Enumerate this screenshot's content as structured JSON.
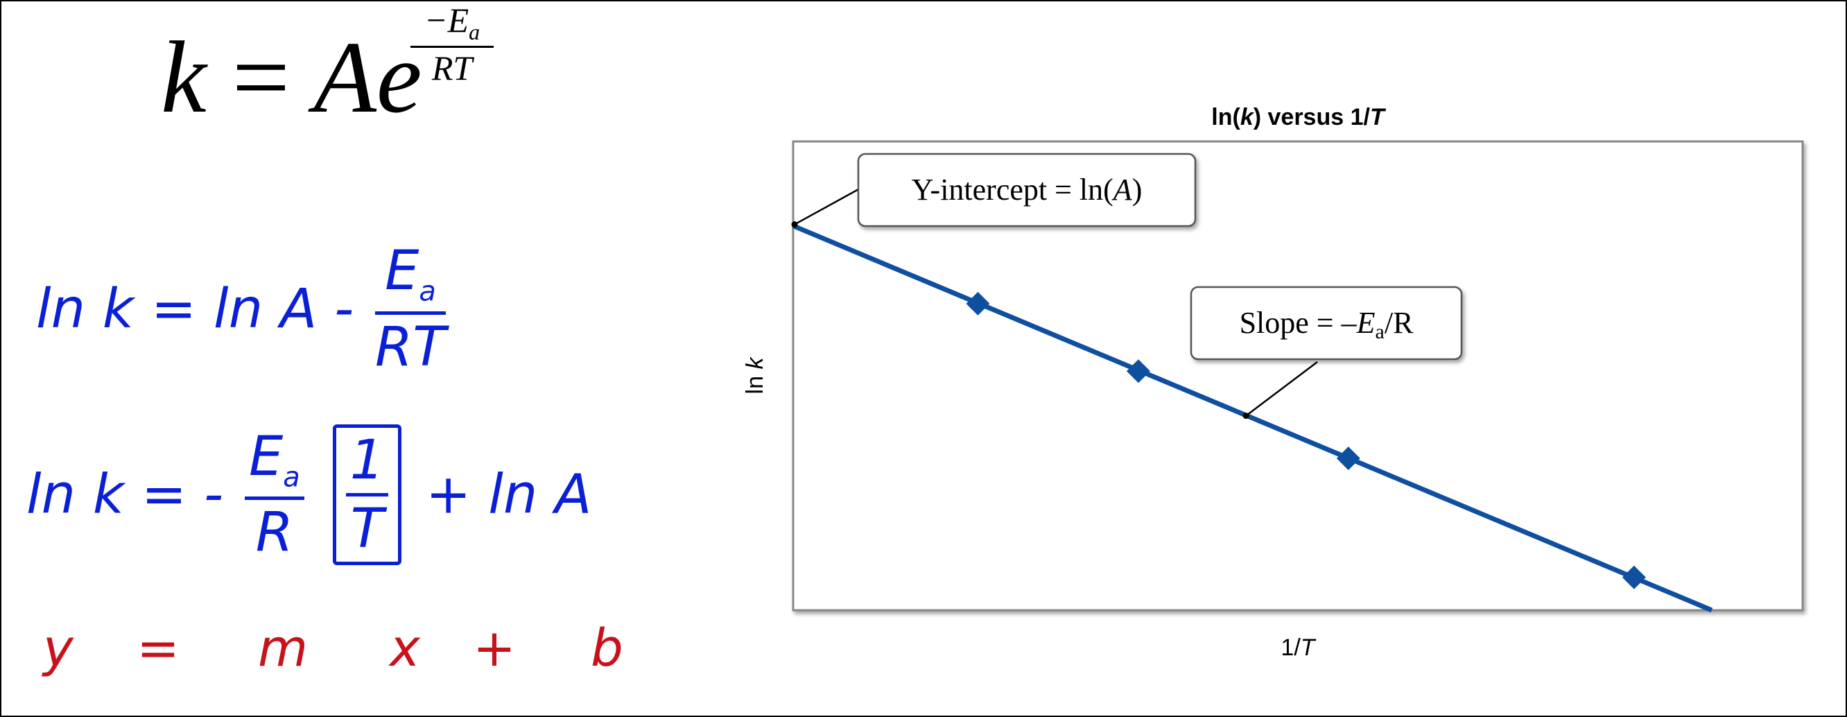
{
  "formulas": {
    "arrhenius": {
      "lhs": "k",
      "eq": "=",
      "rhs": "Ae",
      "exp_num": "−E",
      "exp_num_sub": "a",
      "exp_den": "RT"
    },
    "line1": {
      "lhs": "ln k",
      "eq": "=",
      "ln_a": "ln A",
      "minus": "-",
      "frac_num": "E",
      "frac_num_sub": "a",
      "frac_den": "RT"
    },
    "line2": {
      "lhs": "ln k",
      "eq": "=",
      "minus": "-",
      "frac_num": "E",
      "frac_num_sub": "a",
      "frac_den": "R",
      "inner_num": "1",
      "inner_den": "T",
      "plus": "+",
      "ln_a": "ln A"
    },
    "line3": {
      "y": "y",
      "eq": "=",
      "m": "m",
      "x": "x",
      "plus": "+",
      "b": "b"
    }
  },
  "colors": {
    "handwriting_blue": "#0a1fd8",
    "handwriting_red": "#c8121b",
    "series": "#0f4fa0",
    "frame": "#888888"
  },
  "chart_data": {
    "type": "line",
    "title_prefix": "ln(",
    "title_k": "k",
    "title_mid": ") versus 1/",
    "title_T": "T",
    "xlabel_prefix": "1/",
    "xlabel_var": "T",
    "ylabel_prefix": "ln ",
    "ylabel_var": "k",
    "xlim": [
      0,
      1
    ],
    "ylim": [
      0,
      1
    ],
    "line": {
      "x": [
        0,
        0.91
      ],
      "y": [
        0.82,
        0
      ]
    },
    "points": {
      "x": [
        0.183,
        0.342,
        0.55,
        0.833
      ],
      "y": [
        0.654,
        0.51,
        0.324,
        0.07
      ]
    },
    "grid": false,
    "annotations": [
      {
        "id": "intercept",
        "text_before": "Y-intercept = ln(",
        "text_var": "A",
        "text_after": ")"
      },
      {
        "id": "slope",
        "text_before": "Slope = –",
        "text_var": "E",
        "text_sub": "a",
        "text_after": "/R"
      }
    ]
  }
}
